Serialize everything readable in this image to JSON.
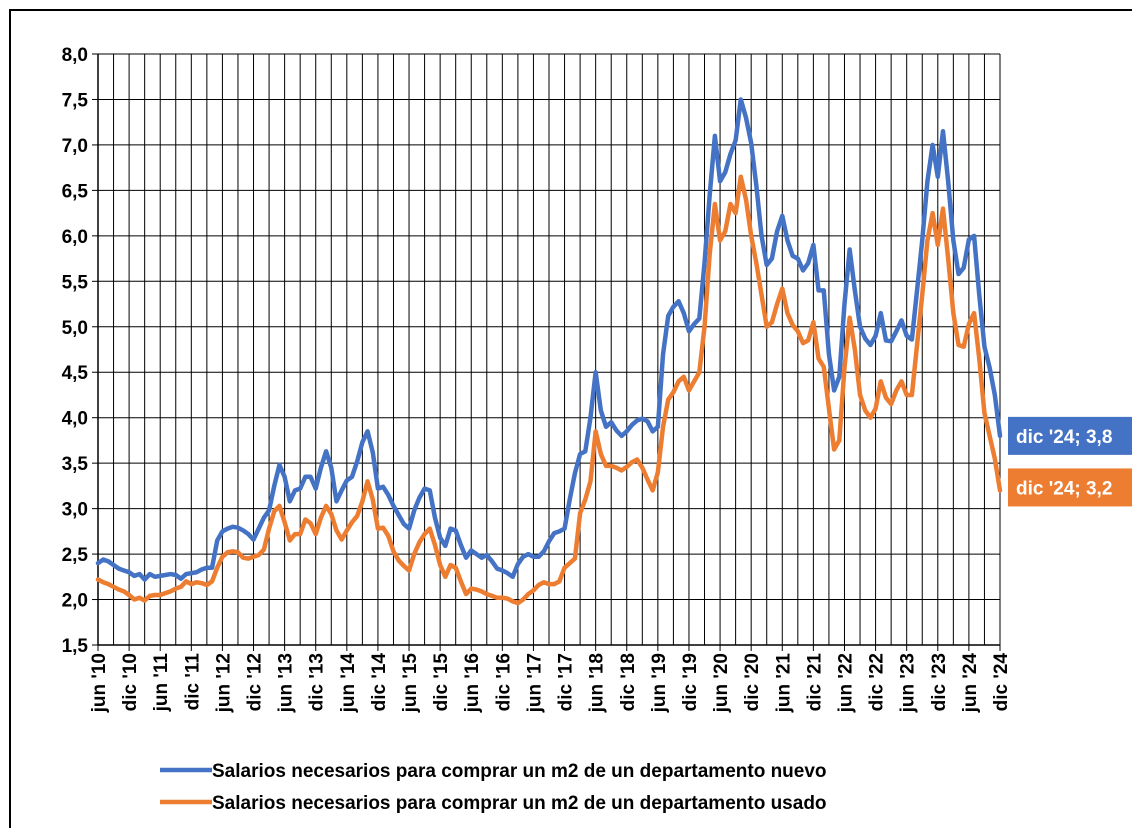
{
  "chart_data": {
    "type": "line",
    "categories": [
      "jun '10",
      null,
      null,
      null,
      null,
      null,
      "dic '10",
      null,
      null,
      null,
      null,
      null,
      "jun '11",
      null,
      null,
      null,
      null,
      null,
      "dic '11",
      null,
      null,
      null,
      null,
      null,
      "jun '12",
      null,
      null,
      null,
      null,
      null,
      "dic '12",
      null,
      null,
      null,
      null,
      null,
      "jun '13",
      null,
      null,
      null,
      null,
      null,
      "dic '13",
      null,
      null,
      null,
      null,
      null,
      "jun '14",
      null,
      null,
      null,
      null,
      null,
      "dic '14",
      null,
      null,
      null,
      null,
      null,
      "jun '15",
      null,
      null,
      null,
      null,
      null,
      "dic '15",
      null,
      null,
      null,
      null,
      null,
      "jun '16",
      null,
      null,
      null,
      null,
      null,
      "dic '16",
      null,
      null,
      null,
      null,
      null,
      "jun '17",
      null,
      null,
      null,
      null,
      null,
      "dic '17",
      null,
      null,
      null,
      null,
      null,
      "jun '18",
      null,
      null,
      null,
      null,
      null,
      "dic '18",
      null,
      null,
      null,
      null,
      null,
      "jun '19",
      null,
      null,
      null,
      null,
      null,
      "dic '19",
      null,
      null,
      null,
      null,
      null,
      "jun '20",
      null,
      null,
      null,
      null,
      null,
      "dic '20",
      null,
      null,
      null,
      null,
      null,
      "jun '21",
      null,
      null,
      null,
      null,
      null,
      "dic '21",
      null,
      null,
      null,
      null,
      null,
      "jun '22",
      null,
      null,
      null,
      null,
      null,
      "dic '22",
      null,
      null,
      null,
      null,
      null,
      "jun '23",
      null,
      null,
      null,
      null,
      null,
      "dic '23",
      null,
      null,
      null,
      null,
      null,
      "jun '24",
      null,
      null,
      null,
      null,
      null,
      "dic '24"
    ],
    "series": [
      {
        "name": "Salarios necesarios para comprar un m2 de un departamento nuevo",
        "color": "#4472c4",
        "label": "dic '24; 3,8",
        "values": [
          2.4,
          2.44,
          2.42,
          2.38,
          2.34,
          2.32,
          2.3,
          2.26,
          2.28,
          2.22,
          2.28,
          2.25,
          2.26,
          2.27,
          2.28,
          2.27,
          2.23,
          2.28,
          2.29,
          2.3,
          2.33,
          2.35,
          2.35,
          2.65,
          2.75,
          2.78,
          2.8,
          2.79,
          2.76,
          2.72,
          2.66,
          2.78,
          2.9,
          2.98,
          3.25,
          3.48,
          3.35,
          3.08,
          3.2,
          3.22,
          3.35,
          3.35,
          3.22,
          3.45,
          3.63,
          3.45,
          3.08,
          3.2,
          3.31,
          3.35,
          3.52,
          3.73,
          3.85,
          3.62,
          3.22,
          3.24,
          3.15,
          3.03,
          2.93,
          2.83,
          2.78,
          2.98,
          3.12,
          3.22,
          3.2,
          2.9,
          2.68,
          2.59,
          2.78,
          2.76,
          2.6,
          2.46,
          2.54,
          2.5,
          2.46,
          2.49,
          2.42,
          2.34,
          2.32,
          2.29,
          2.25,
          2.39,
          2.47,
          2.5,
          2.47,
          2.47,
          2.53,
          2.64,
          2.73,
          2.75,
          2.78,
          3.1,
          3.39,
          3.6,
          3.63,
          4.0,
          4.5,
          4.08,
          3.9,
          3.95,
          3.86,
          3.8,
          3.85,
          3.92,
          3.97,
          3.99,
          3.96,
          3.85,
          3.9,
          4.7,
          5.12,
          5.22,
          5.28,
          5.15,
          4.95,
          5.03,
          5.09,
          5.7,
          6.45,
          7.1,
          6.6,
          6.7,
          6.9,
          7.05,
          7.5,
          7.3,
          7.02,
          6.55,
          6.0,
          5.68,
          5.75,
          6.05,
          6.22,
          5.95,
          5.78,
          5.75,
          5.62,
          5.7,
          5.9,
          5.4,
          5.4,
          4.7,
          4.3,
          4.45,
          5.25,
          5.85,
          5.4,
          5.0,
          4.87,
          4.8,
          4.9,
          5.15,
          4.85,
          4.84,
          4.95,
          5.07,
          4.9,
          4.86,
          5.4,
          5.95,
          6.6,
          7.0,
          6.65,
          7.15,
          6.6,
          5.95,
          5.58,
          5.65,
          5.96,
          6.0,
          5.35,
          4.78,
          4.55,
          4.25,
          3.8
        ]
      },
      {
        "name": "Salarios necesarios para comprar un m2 de un departamento usado",
        "color": "#ed7d31",
        "label": "dic '24; 3,2",
        "values": [
          2.22,
          2.19,
          2.17,
          2.14,
          2.11,
          2.09,
          2.05,
          2.0,
          2.02,
          1.99,
          2.04,
          2.05,
          2.05,
          2.07,
          2.09,
          2.12,
          2.14,
          2.2,
          2.17,
          2.19,
          2.18,
          2.16,
          2.2,
          2.35,
          2.47,
          2.52,
          2.53,
          2.52,
          2.46,
          2.45,
          2.47,
          2.49,
          2.55,
          2.78,
          2.97,
          3.03,
          2.85,
          2.65,
          2.72,
          2.72,
          2.88,
          2.84,
          2.72,
          2.9,
          3.03,
          2.94,
          2.76,
          2.66,
          2.76,
          2.85,
          2.92,
          3.08,
          3.3,
          3.1,
          2.78,
          2.79,
          2.7,
          2.53,
          2.43,
          2.37,
          2.32,
          2.5,
          2.63,
          2.72,
          2.78,
          2.6,
          2.38,
          2.25,
          2.38,
          2.35,
          2.2,
          2.06,
          2.12,
          2.11,
          2.09,
          2.06,
          2.04,
          2.02,
          2.02,
          2.01,
          1.98,
          1.96,
          2.0,
          2.06,
          2.1,
          2.16,
          2.19,
          2.17,
          2.17,
          2.2,
          2.35,
          2.4,
          2.45,
          2.95,
          3.1,
          3.3,
          3.85,
          3.6,
          3.47,
          3.47,
          3.45,
          3.42,
          3.46,
          3.51,
          3.54,
          3.45,
          3.32,
          3.2,
          3.4,
          3.9,
          4.2,
          4.28,
          4.4,
          4.45,
          4.3,
          4.4,
          4.5,
          5.0,
          5.8,
          6.35,
          5.95,
          6.05,
          6.35,
          6.25,
          6.65,
          6.4,
          6.0,
          5.7,
          5.35,
          5.0,
          5.05,
          5.25,
          5.42,
          5.15,
          5.02,
          4.95,
          4.82,
          4.85,
          5.05,
          4.65,
          4.56,
          4.1,
          3.65,
          3.75,
          4.55,
          5.1,
          4.75,
          4.25,
          4.08,
          4.0,
          4.1,
          4.4,
          4.22,
          4.15,
          4.3,
          4.4,
          4.25,
          4.25,
          4.8,
          5.35,
          5.95,
          6.25,
          5.9,
          6.3,
          5.75,
          5.15,
          4.8,
          4.78,
          5.03,
          5.15,
          4.65,
          4.05,
          3.8,
          3.55,
          3.2
        ]
      }
    ],
    "ylim": [
      1.5,
      8.0
    ],
    "yticks": [
      {
        "value": 1.5,
        "label": "1,5"
      },
      {
        "value": 2.0,
        "label": "2,0"
      },
      {
        "value": 2.5,
        "label": "2,5"
      },
      {
        "value": 3.0,
        "label": "3,0"
      },
      {
        "value": 3.5,
        "label": "3,5"
      },
      {
        "value": 4.0,
        "label": "4,0"
      },
      {
        "value": 4.5,
        "label": "4,5"
      },
      {
        "value": 5.0,
        "label": "5,0"
      },
      {
        "value": 5.5,
        "label": "5,5"
      },
      {
        "value": 6.0,
        "label": "6,0"
      },
      {
        "value": 6.5,
        "label": "6,5"
      },
      {
        "value": 7.0,
        "label": "7,0"
      },
      {
        "value": 7.5,
        "label": "7,5"
      },
      {
        "value": 8.0,
        "label": "8,0"
      }
    ],
    "grid": true
  }
}
